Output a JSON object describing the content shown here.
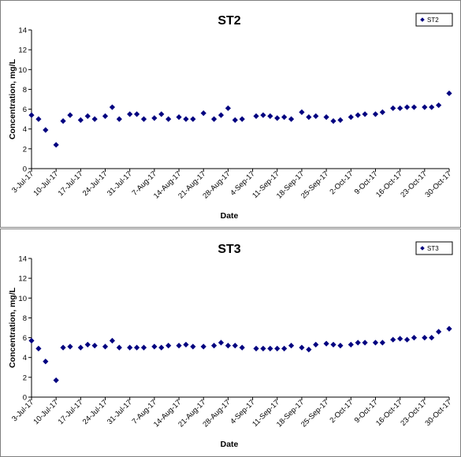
{
  "chart_data": [
    {
      "type": "scatter",
      "title": "ST2",
      "xlabel": "Date",
      "ylabel": "Concentration, mg/L",
      "ylim": [
        0,
        14
      ],
      "yticks": [
        0,
        2,
        4,
        6,
        8,
        10,
        12,
        14
      ],
      "xlim": [
        "3-Jul-17",
        "30-Oct-17"
      ],
      "xtick_labels": [
        "3-Jul-17",
        "10-Jul-17",
        "17-Jul-17",
        "24-Jul-17",
        "31-Jul-17",
        "7-Aug-17",
        "14-Aug-17",
        "21-Aug-17",
        "28-Aug-17",
        "4-Sep-17",
        "11-Sep-17",
        "18-Sep-17",
        "25-Sep-17",
        "2-Oct-17",
        "9-Oct-17",
        "16-Oct-17",
        "23-Oct-17",
        "30-Oct-17"
      ],
      "grid": false,
      "legend": "top-right",
      "marker_color": "#000080",
      "series": [
        {
          "name": "ST2",
          "x": [
            "3-Jul-17",
            "5-Jul-17",
            "7-Jul-17",
            "10-Jul-17",
            "12-Jul-17",
            "14-Jul-17",
            "17-Jul-17",
            "19-Jul-17",
            "21-Jul-17",
            "24-Jul-17",
            "26-Jul-17",
            "28-Jul-17",
            "31-Jul-17",
            "2-Aug-17",
            "4-Aug-17",
            "7-Aug-17",
            "9-Aug-17",
            "11-Aug-17",
            "14-Aug-17",
            "16-Aug-17",
            "18-Aug-17",
            "21-Aug-17",
            "24-Aug-17",
            "26-Aug-17",
            "28-Aug-17",
            "30-Aug-17",
            "1-Sep-17",
            "5-Sep-17",
            "7-Sep-17",
            "9-Sep-17",
            "11-Sep-17",
            "13-Sep-17",
            "15-Sep-17",
            "18-Sep-17",
            "20-Sep-17",
            "22-Sep-17",
            "25-Sep-17",
            "27-Sep-17",
            "29-Sep-17",
            "2-Oct-17",
            "4-Oct-17",
            "6-Oct-17",
            "9-Oct-17",
            "11-Oct-17",
            "14-Oct-17",
            "16-Oct-17",
            "18-Oct-17",
            "20-Oct-17",
            "23-Oct-17",
            "25-Oct-17",
            "27-Oct-17",
            "30-Oct-17"
          ],
          "y": [
            5.4,
            5.0,
            3.9,
            2.4,
            4.8,
            5.4,
            4.9,
            5.3,
            5.0,
            5.3,
            6.2,
            5.0,
            5.5,
            5.5,
            5.0,
            5.1,
            5.5,
            5.0,
            5.2,
            5.0,
            5.0,
            5.6,
            5.0,
            5.4,
            6.1,
            4.9,
            5.0,
            5.3,
            5.4,
            5.3,
            5.1,
            5.2,
            5.0,
            5.7,
            5.2,
            5.3,
            5.2,
            4.8,
            4.9,
            5.2,
            5.4,
            5.5,
            5.5,
            5.7,
            6.1,
            6.1,
            6.2,
            6.2,
            6.2,
            6.2,
            6.4,
            7.6
          ]
        }
      ]
    },
    {
      "type": "scatter",
      "title": "ST3",
      "xlabel": "Date",
      "ylabel": "Concentration, mg/L",
      "ylim": [
        0,
        14
      ],
      "yticks": [
        0,
        2,
        4,
        6,
        8,
        10,
        12,
        14
      ],
      "xlim": [
        "3-Jul-17",
        "30-Oct-17"
      ],
      "xtick_labels": [
        "3-Jul-17",
        "10-Jul-17",
        "17-Jul-17",
        "24-Jul-17",
        "31-Jul-17",
        "7-Aug-17",
        "14-Aug-17",
        "21-Aug-17",
        "28-Aug-17",
        "4-Sep-17",
        "11-Sep-17",
        "18-Sep-17",
        "25-Sep-17",
        "2-Oct-17",
        "9-Oct-17",
        "16-Oct-17",
        "23-Oct-17",
        "30-Oct-17"
      ],
      "grid": false,
      "legend": "top-right",
      "marker_color": "#000080",
      "series": [
        {
          "name": "ST3",
          "x": [
            "3-Jul-17",
            "5-Jul-17",
            "7-Jul-17",
            "10-Jul-17",
            "12-Jul-17",
            "14-Jul-17",
            "17-Jul-17",
            "19-Jul-17",
            "21-Jul-17",
            "24-Jul-17",
            "26-Jul-17",
            "28-Jul-17",
            "31-Jul-17",
            "2-Aug-17",
            "4-Aug-17",
            "7-Aug-17",
            "9-Aug-17",
            "11-Aug-17",
            "14-Aug-17",
            "16-Aug-17",
            "18-Aug-17",
            "21-Aug-17",
            "24-Aug-17",
            "26-Aug-17",
            "28-Aug-17",
            "30-Aug-17",
            "1-Sep-17",
            "5-Sep-17",
            "7-Sep-17",
            "9-Sep-17",
            "11-Sep-17",
            "13-Sep-17",
            "15-Sep-17",
            "18-Sep-17",
            "20-Sep-17",
            "22-Sep-17",
            "25-Sep-17",
            "27-Sep-17",
            "29-Sep-17",
            "2-Oct-17",
            "4-Oct-17",
            "6-Oct-17",
            "9-Oct-17",
            "11-Oct-17",
            "14-Oct-17",
            "16-Oct-17",
            "18-Oct-17",
            "20-Oct-17",
            "23-Oct-17",
            "25-Oct-17",
            "27-Oct-17",
            "30-Oct-17"
          ],
          "y": [
            5.7,
            4.9,
            3.6,
            1.7,
            5.0,
            5.1,
            5.0,
            5.3,
            5.2,
            5.1,
            5.7,
            5.0,
            5.0,
            5.0,
            5.0,
            5.1,
            5.0,
            5.2,
            5.2,
            5.3,
            5.1,
            5.1,
            5.2,
            5.5,
            5.2,
            5.2,
            5.0,
            4.9,
            4.9,
            4.9,
            4.9,
            4.9,
            5.2,
            5.0,
            4.8,
            5.3,
            5.4,
            5.3,
            5.2,
            5.3,
            5.5,
            5.5,
            5.5,
            5.5,
            5.8,
            5.9,
            5.8,
            6.0,
            6.0,
            6.0,
            6.6,
            6.9
          ]
        }
      ]
    }
  ]
}
